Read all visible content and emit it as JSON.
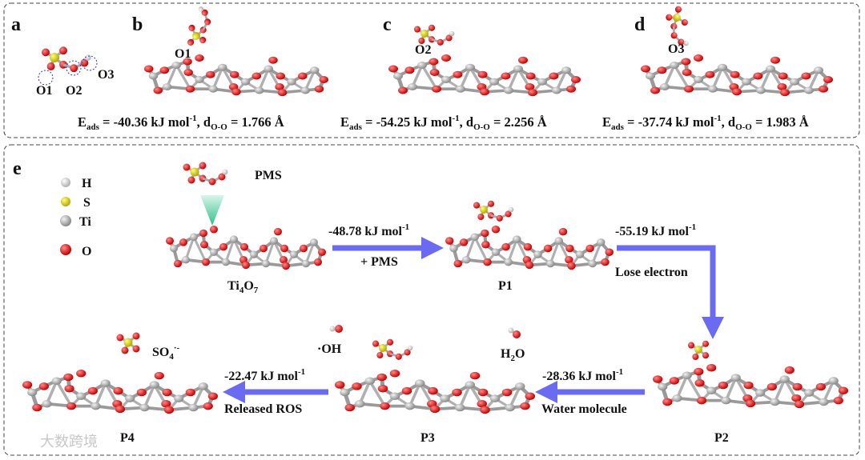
{
  "top": {
    "a": {
      "label": "a",
      "sites": [
        "O1",
        "O2",
        "O3"
      ]
    },
    "b": {
      "label": "b",
      "site": "O1",
      "energy": [
        "E",
        "ads",
        " = -40.36 kJ mol",
        "-1",
        ", d",
        "O-O",
        " = 1.766 Å"
      ]
    },
    "c": {
      "label": "c",
      "site": "O2",
      "energy": [
        "E",
        "ads",
        " = -54.25 kJ mol",
        "-1",
        ", d",
        "O-O",
        " = 2.256 Å"
      ]
    },
    "d": {
      "label": "d",
      "site": "O3",
      "energy": [
        "E",
        "ads",
        " = -37.74 kJ mol",
        "-1",
        ", d",
        "O-O",
        " = 1.983 Å"
      ]
    }
  },
  "e": {
    "label": "e",
    "legend": [
      "H",
      "S",
      "Ti",
      "O"
    ],
    "pms": "PMS",
    "ti4o7": [
      "Ti",
      "4",
      "O",
      "7"
    ],
    "states": {
      "P1": "P1",
      "P2": "P2",
      "P3": "P3",
      "P4": "P4"
    },
    "steps": [
      {
        "energy": [
          "-48.78 kJ mol",
          "-1"
        ],
        "note": "+ PMS"
      },
      {
        "energy": [
          "-55.19 kJ mol",
          "-1"
        ],
        "note": "Lose electron"
      },
      {
        "energy": [
          "-28.36 kJ mol",
          "-1"
        ],
        "note": "Water molecule"
      },
      {
        "energy": [
          "-22.47 kJ mol",
          "-1"
        ],
        "note": "Released ROS"
      }
    ],
    "oh": "·OH",
    "h2o": [
      "H",
      "2",
      "O"
    ],
    "so4": [
      "SO",
      "4",
      "·-"
    ]
  },
  "watermark": "大数跨境"
}
